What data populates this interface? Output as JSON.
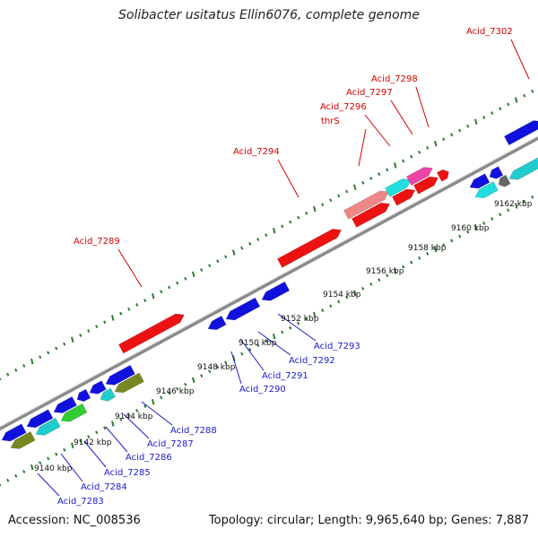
{
  "title": "Solibacter usitatus Ellin6076, complete genome",
  "accession": "Accession: NC_008536",
  "summary": "Topology: circular; Length: 9,965,640 bp; Genes: 7,887",
  "colors": {
    "forward_label": "#d40000",
    "reverse_label": "#1a1acc",
    "backbone": "#8a8a8a",
    "dots": "#2f7d2f"
  },
  "scale": {
    "ticks": [
      "9140 kbp",
      "9142 kbp",
      "9144 kbp",
      "9146 kbp",
      "9148 kbp",
      "9150 kbp",
      "9152 kbp",
      "9154 kbp",
      "9156 kbp",
      "9158 kbp",
      "9160 kbp",
      "9162 kbp"
    ]
  },
  "genes": {
    "forward": [
      "Acid_7289",
      "Acid_7294",
      "thrS",
      "Acid_7296",
      "Acid_7297",
      "Acid_7298",
      "Acid_7302"
    ],
    "reverse": [
      "Acid_7283",
      "Acid_7284",
      "Acid_7285",
      "Acid_7286",
      "Acid_7287",
      "Acid_7288",
      "Acid_7290",
      "Acid_7291",
      "Acid_7292",
      "Acid_7293"
    ]
  }
}
